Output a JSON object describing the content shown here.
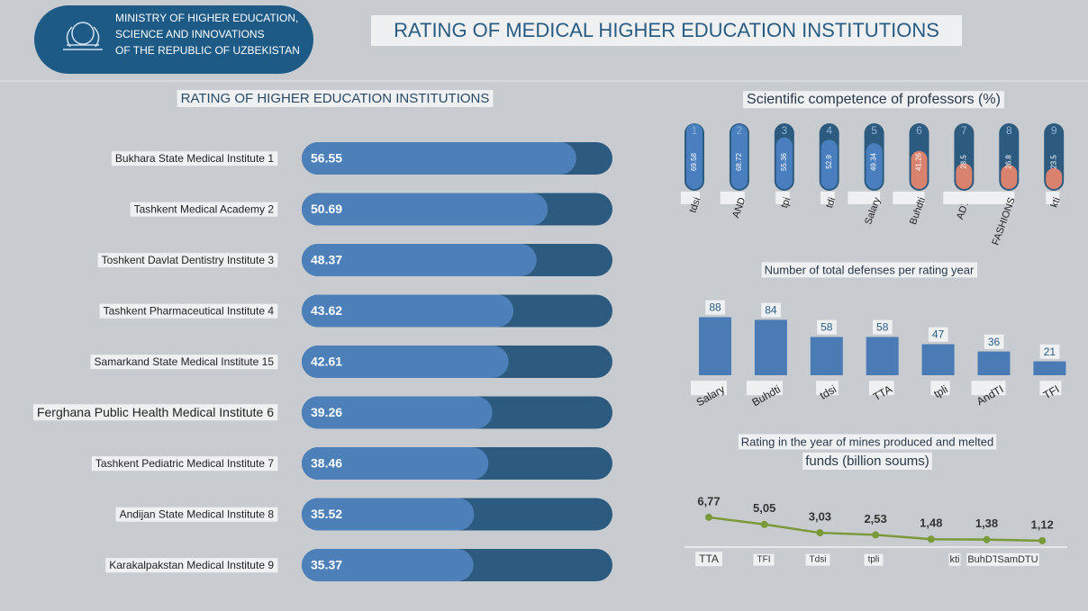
{
  "header": {
    "logo_lines": [
      "MINISTRY OF HIGHER EDUCATION,",
      "SCIENCE AND INNOVATIONS",
      "OF THE REPUBLIC OF UZBEKISTAN"
    ],
    "title": "RATING OF MEDICAL HIGHER EDUCATION INSTITUTIONS"
  },
  "chart_data": [
    {
      "type": "hbar",
      "title": "RATING OF HIGHER EDUCATION INSTITUTIONS",
      "categories": [
        "Bukhara State Medical Institute 1",
        "Tashkent Medical Academy 2",
        "Toshkent Davlat Dentistry Institute 3",
        "Tashkent Pharmaceutical Institute 4",
        "Samarkand State Medical Institute 15",
        "Ferghana Public Health Medical Institute 6",
        "Tashkent Pediatric Medical Institute 7",
        "Andijan State Medical Institute 8",
        "Karakalpakstan Medical Institute 9"
      ],
      "values": [
        56.55,
        50.69,
        48.37,
        43.62,
        42.61,
        39.26,
        38.46,
        35.52,
        35.37
      ],
      "xlim": [
        0,
        64
      ],
      "color": "#4d80b8",
      "track_color": "#2d5b80"
    },
    {
      "type": "pill",
      "title": "Scientific competence of professors (%)",
      "ranks": [
        1,
        2,
        3,
        4,
        5,
        6,
        7,
        8,
        9
      ],
      "categories": [
        "tdsi",
        "AND",
        "tpi",
        "tdi",
        "Salary",
        "Buhdti",
        "ADTI",
        "FASHIONS",
        "kti"
      ],
      "values": [
        69.58,
        68.72,
        55.36,
        52.9,
        49.34,
        41.26,
        28.5,
        26.8,
        23.5
      ],
      "colors": [
        "#4a7fbf",
        "#4a7fbf",
        "#4a7fbf",
        "#4a7fbf",
        "#4a7fbf",
        "#d9826e",
        "#d9826e",
        "#d9826e",
        "#d9826e"
      ],
      "ylim": [
        0,
        70
      ],
      "track_color": "#2d5b80"
    },
    {
      "type": "bar",
      "title": "Number of total defenses per rating year",
      "categories": [
        "Salary",
        "Buhdti",
        "tdsi",
        "TTA",
        "tpli",
        "AndTI",
        "TFI"
      ],
      "values": [
        88,
        84,
        58,
        58,
        47,
        36,
        21
      ],
      "ylim": [
        0,
        90
      ],
      "color": "#4a7bb5"
    },
    {
      "type": "line",
      "title": "Rating in the year of mines produced and melted",
      "subtitle": "funds (billion soums)",
      "categories": [
        "TTA",
        "TFI",
        "Tdsi",
        "tpli",
        "kti",
        "BuhDTI",
        "SamDTU"
      ],
      "values": [
        6.77,
        5.05,
        3.03,
        2.53,
        1.48,
        1.38,
        1.12
      ],
      "value_labels": [
        "6,77",
        "5,05",
        "3,03",
        "2,53",
        "1,48",
        "1,38",
        "1,12"
      ],
      "ylim": [
        0,
        8
      ],
      "color": "#7a9a3a"
    }
  ]
}
